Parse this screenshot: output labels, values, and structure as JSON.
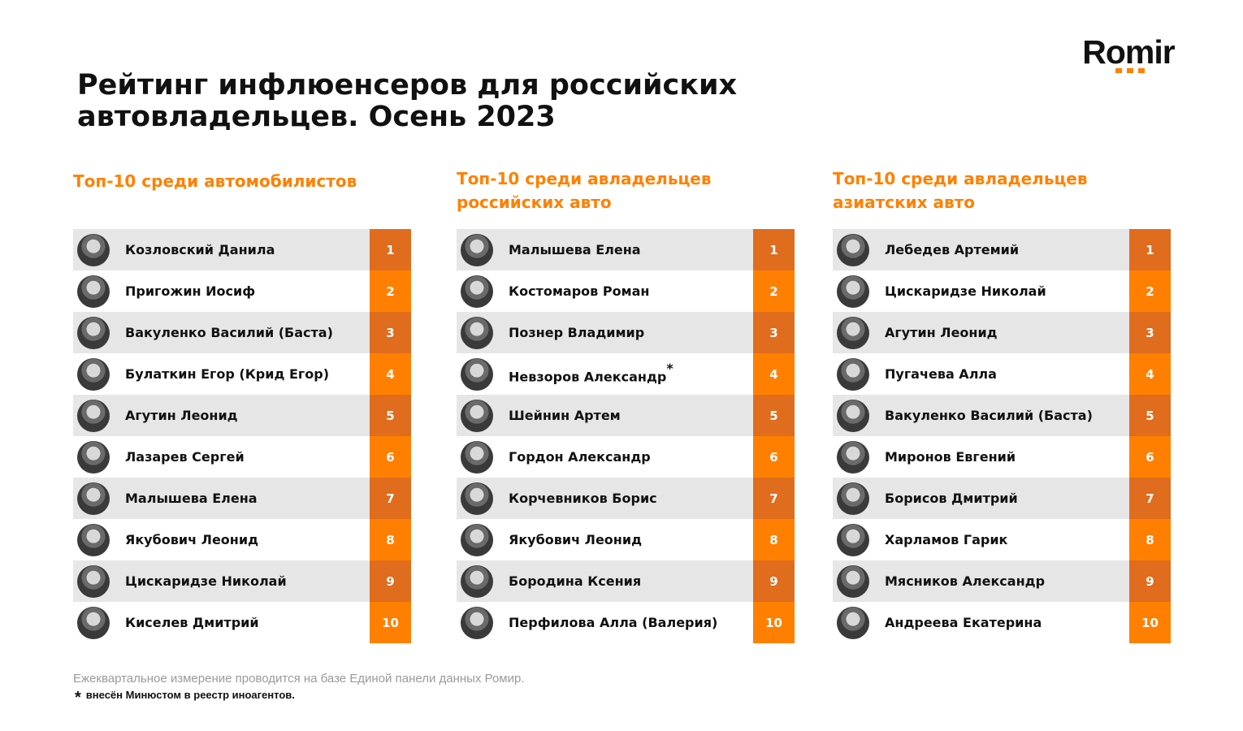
{
  "logo": "Romir",
  "title_line1": "Рейтинг инфлюенсеров для российских",
  "title_line2": "автовладельцев. Осень 2023",
  "columns": [
    {
      "heading": "Топ-10 среди автомобилистов",
      "rows": [
        {
          "name": "Козловский Данила",
          "rank": "1"
        },
        {
          "name": "Пригожин Иосиф",
          "rank": "2"
        },
        {
          "name": "Вакуленко Василий (Баста)",
          "rank": "3"
        },
        {
          "name": "Булаткин Егор (Крид Егор)",
          "rank": "4"
        },
        {
          "name": "Агутин Леонид",
          "rank": "5"
        },
        {
          "name": "Лазарев Сергей",
          "rank": "6"
        },
        {
          "name": "Малышева Елена",
          "rank": "7"
        },
        {
          "name": "Якубович Леонид",
          "rank": "8"
        },
        {
          "name": "Цискаридзе Николай",
          "rank": "9"
        },
        {
          "name": "Киселев Дмитрий",
          "rank": "10"
        }
      ]
    },
    {
      "heading": "Топ-10 среди авладельцев российских авто",
      "rows": [
        {
          "name": "Малышева Елена",
          "rank": "1"
        },
        {
          "name": "Костомаров Роман",
          "rank": "2"
        },
        {
          "name": "Познер Владимир",
          "rank": "3"
        },
        {
          "name": "Невзоров Александр",
          "rank": "4",
          "mark": "*"
        },
        {
          "name": "Шейнин Артем",
          "rank": "5"
        },
        {
          "name": "Гордон Александр",
          "rank": "6"
        },
        {
          "name": "Корчевников Борис",
          "rank": "7"
        },
        {
          "name": "Якубович Леонид",
          "rank": "8"
        },
        {
          "name": "Бородина Ксения",
          "rank": "9"
        },
        {
          "name": "Перфилова Алла (Валерия)",
          "rank": "10"
        }
      ]
    },
    {
      "heading": "Топ-10 среди авладельцев азиатских авто",
      "rows": [
        {
          "name": "Лебедев Артемий",
          "rank": "1"
        },
        {
          "name": "Цискаридзе Николай",
          "rank": "2"
        },
        {
          "name": "Агутин Леонид",
          "rank": "3"
        },
        {
          "name": "Пугачева Алла",
          "rank": "4"
        },
        {
          "name": "Вакуленко Василий (Баста)",
          "rank": "5"
        },
        {
          "name": "Миронов Евгений",
          "rank": "6"
        },
        {
          "name": "Борисов Дмитрий",
          "rank": "7"
        },
        {
          "name": "Харламов Гарик",
          "rank": "8"
        },
        {
          "name": "Мясников Александр",
          "rank": "9"
        },
        {
          "name": "Андреева Екатерина",
          "rank": "10"
        }
      ]
    }
  ],
  "note": "Ежеквартальное измерение проводится на базе Единой панели данных Ромир.",
  "footnote_mark": "*",
  "footnote": "внесён Минюстом в реестр иноагентов.",
  "colors": {
    "accent": "#ff8000",
    "accent_dark": "#e06c1e",
    "row_alt": "#e6e6e6"
  }
}
